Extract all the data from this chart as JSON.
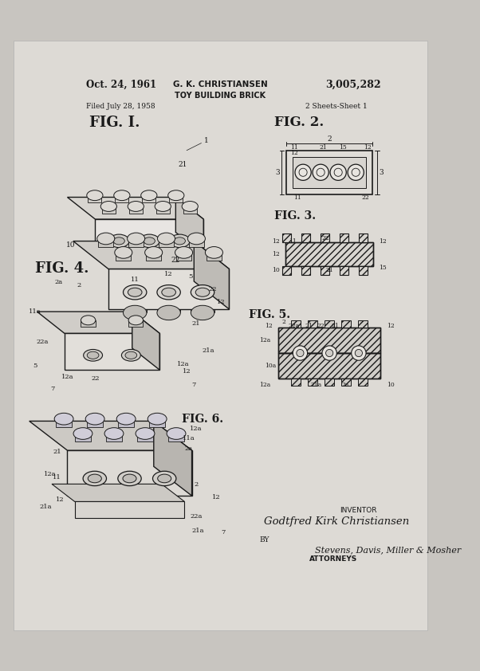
{
  "bg_color": "#c8c5c0",
  "paper_color": "#dddad5",
  "line_color": "#1a1a1a",
  "text_color": "#1a1a1a",
  "date": "Oct. 24, 1961",
  "inventor_name": "G. K. CHRISTIANSEN",
  "patent_title": "TOY BUILDING BRICK",
  "patent_number": "3,005,282",
  "filed": "Filed July 28, 1958",
  "sheets": "2 Sheets-Sheet 1",
  "inventor_label": "INVENTOR",
  "inventor_full": "Godtfred Kirk Christiansen",
  "by_label": "BY",
  "attorneys_sig": "Stevens, Davis, Miller & Mosher",
  "attorneys_label": "ATTORNEYS",
  "fig1_label": "FIG. I.",
  "fig2_label": "FIG. 2.",
  "fig3_label": "FIG. 3.",
  "fig4_label": "FIG. 4.",
  "fig5_label": "FIG. 5.",
  "fig6_label": "FIG. 6."
}
